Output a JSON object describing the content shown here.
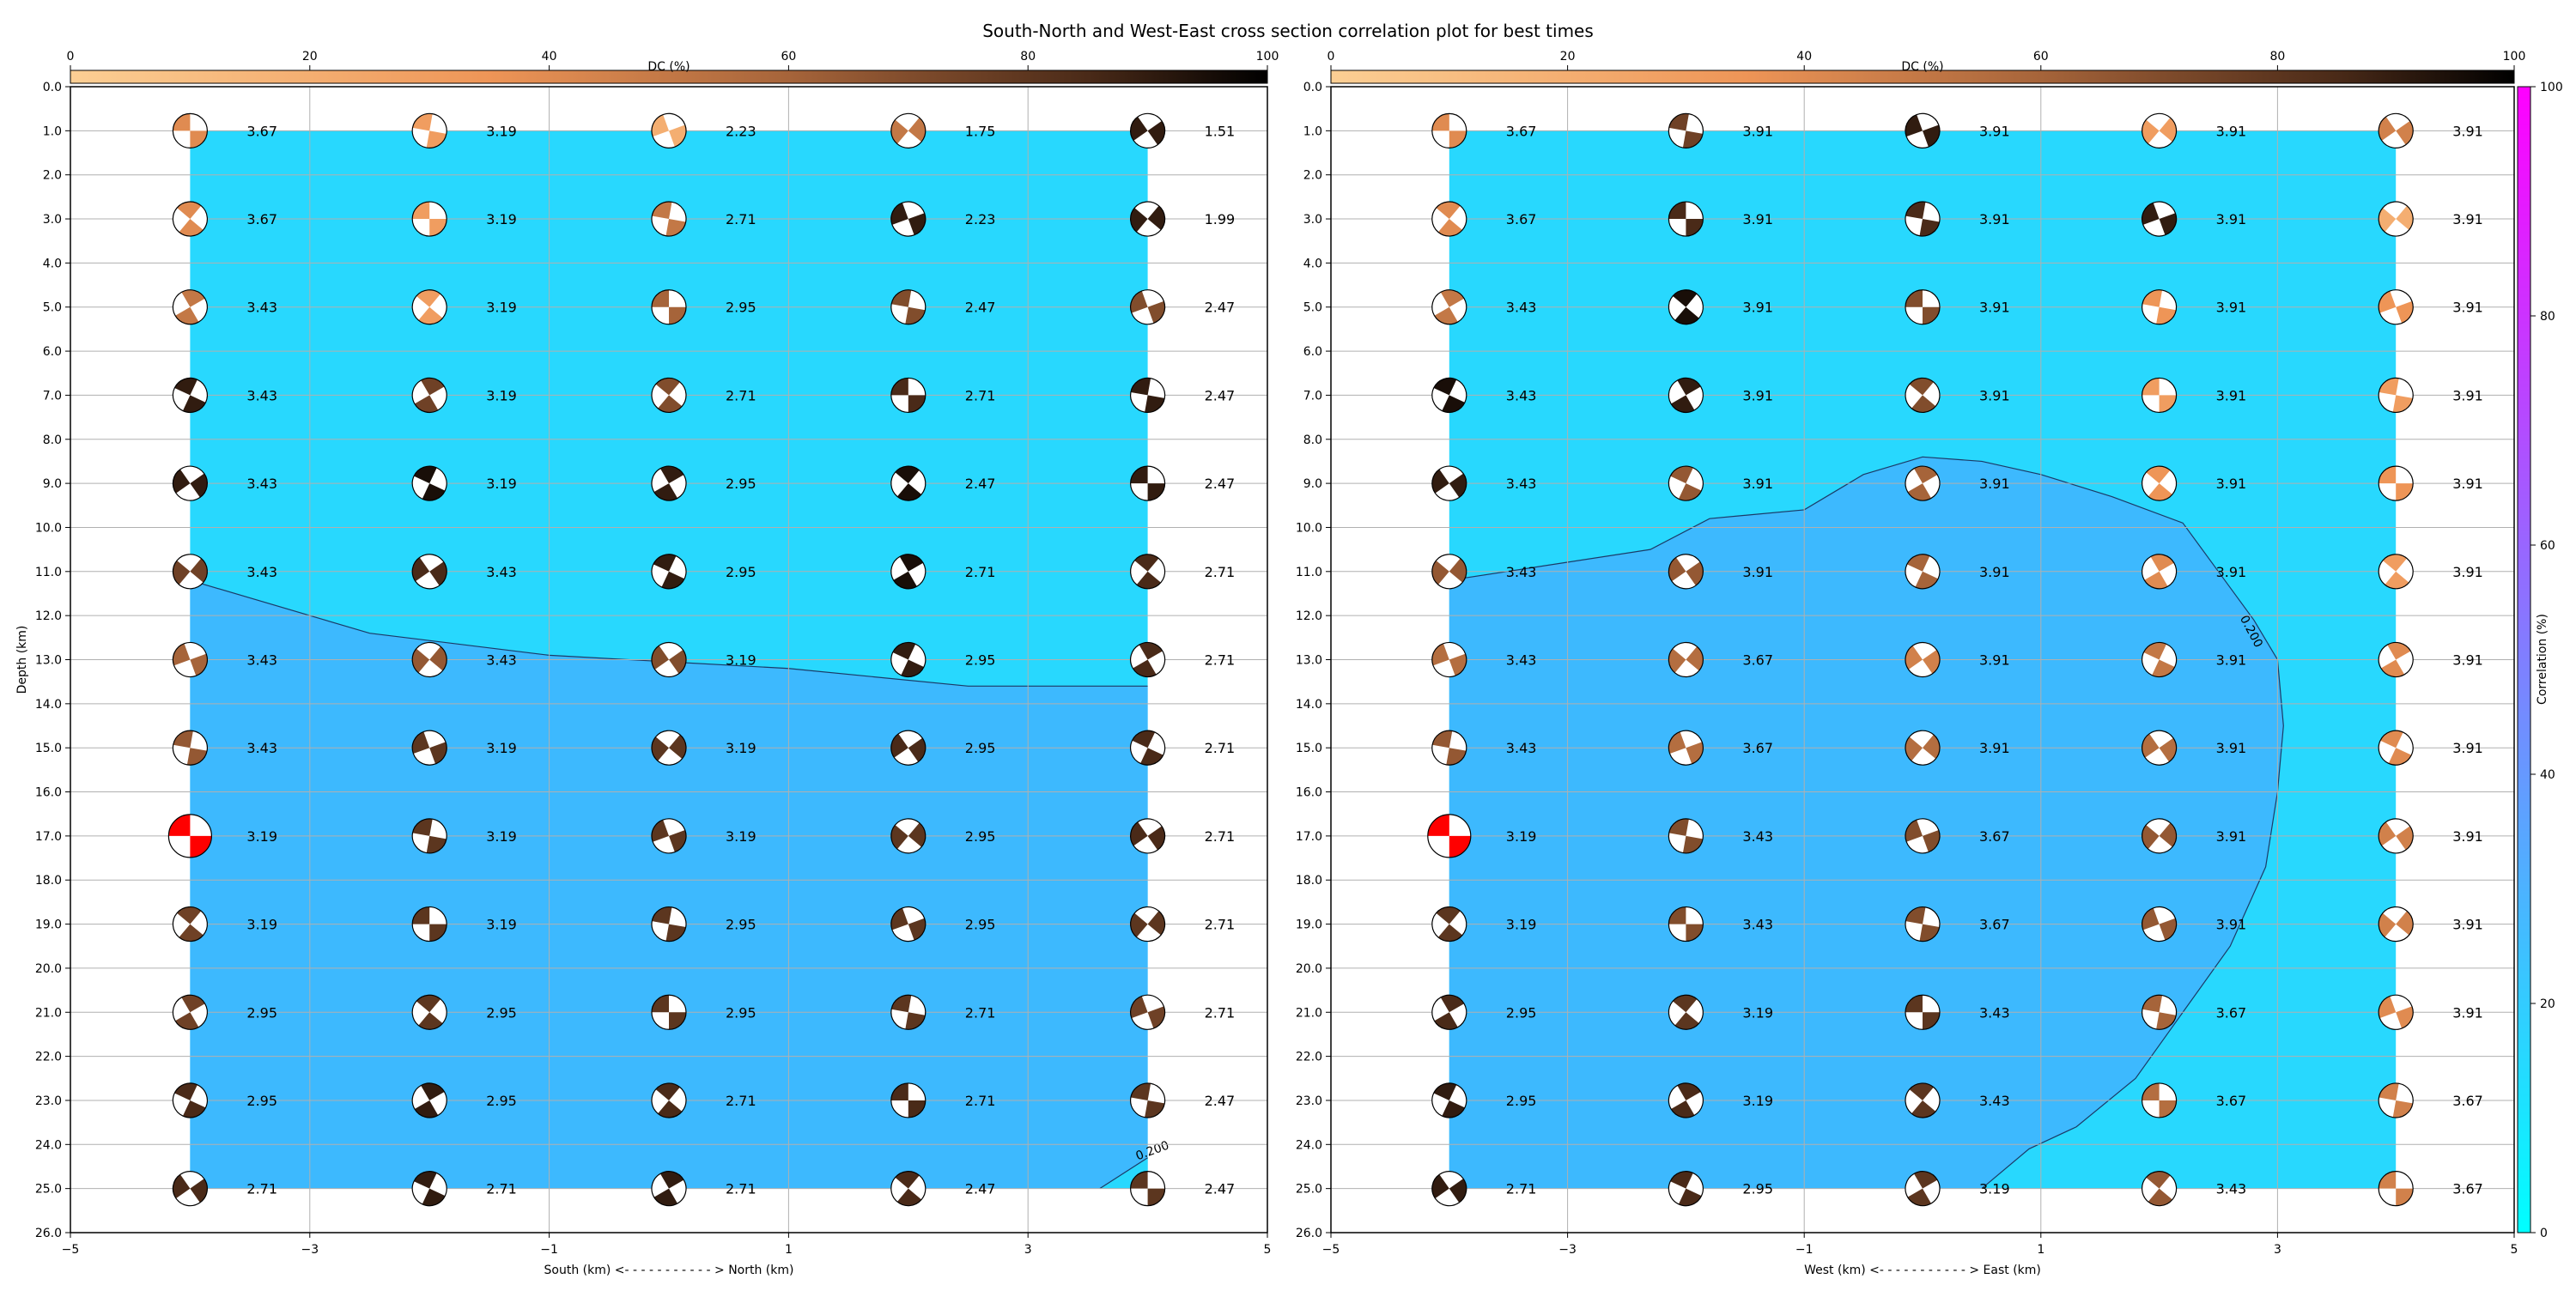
{
  "figure": {
    "title": "South-North and West-East cross section correlation plot for best times",
    "dc_colorbar": {
      "label": "DC (%)",
      "ticks": [
        0,
        20,
        40,
        60,
        80,
        100
      ]
    },
    "corr_colorbar": {
      "label": "Correlation (%)",
      "ticks": [
        0,
        20,
        40,
        60,
        80,
        100
      ]
    },
    "colors": {
      "high_corr_fill": "#28d8fe",
      "low_corr_fill": "#3db9fe",
      "best_solution": "#ff0000",
      "grid": "#b0b0b0"
    }
  },
  "chart_data": [
    {
      "type": "heatmap",
      "xlabel": "South (km) <- - - - - - - - - - - > North (km)",
      "ylabel": "Depth (km)",
      "xlim": [
        -5,
        5
      ],
      "ylim": [
        26,
        0
      ],
      "xticks": [
        "−5",
        "−3",
        "−1",
        "1",
        "3",
        "5"
      ],
      "yticks": [
        "0.0",
        "1.0",
        "2.0",
        "3.0",
        "4.0",
        "5.0",
        "6.0",
        "7.0",
        "8.0",
        "9.0",
        "10.0",
        "11.0",
        "12.0",
        "13.0",
        "14.0",
        "15.0",
        "16.0",
        "17.0",
        "18.0",
        "19.0",
        "20.0",
        "21.0",
        "22.0",
        "23.0",
        "24.0",
        "25.0",
        "26.0"
      ],
      "grid": true,
      "x": [
        -4,
        -2,
        0,
        2,
        4
      ],
      "depths": [
        1,
        3,
        5,
        7,
        9,
        11,
        13,
        15,
        17,
        19,
        21,
        23,
        25
      ],
      "values": [
        [
          "3.67",
          "3.19",
          "2.23",
          "1.75",
          "1.51"
        ],
        [
          "3.67",
          "3.19",
          "2.71",
          "2.23",
          "1.99"
        ],
        [
          "3.43",
          "3.19",
          "2.95",
          "2.47",
          "2.47"
        ],
        [
          "3.43",
          "3.19",
          "2.71",
          "2.71",
          "2.47"
        ],
        [
          "3.43",
          "3.19",
          "2.95",
          "2.47",
          "2.47"
        ],
        [
          "3.43",
          "3.43",
          "2.95",
          "2.71",
          "2.71"
        ],
        [
          "3.43",
          "3.43",
          "3.19",
          "2.95",
          "2.71"
        ],
        [
          "3.43",
          "3.19",
          "3.19",
          "2.95",
          "2.71"
        ],
        [
          "3.19",
          "3.19",
          "3.19",
          "2.95",
          "2.71"
        ],
        [
          "3.19",
          "3.19",
          "2.95",
          "2.95",
          "2.71"
        ],
        [
          "2.95",
          "2.95",
          "2.95",
          "2.71",
          "2.71"
        ],
        [
          "2.95",
          "2.95",
          "2.71",
          "2.71",
          "2.47"
        ],
        [
          "2.71",
          "2.71",
          "2.71",
          "2.47",
          "2.47"
        ]
      ],
      "dc_percent": [
        [
          40,
          30,
          20,
          50,
          90
        ],
        [
          40,
          30,
          50,
          90,
          90
        ],
        [
          50,
          30,
          60,
          70,
          70
        ],
        [
          90,
          75,
          70,
          85,
          90
        ],
        [
          90,
          95,
          90,
          95,
          90
        ],
        [
          75,
          85,
          90,
          95,
          85
        ],
        [
          60,
          65,
          70,
          90,
          85
        ],
        [
          65,
          80,
          80,
          85,
          85
        ],
        [
          0,
          80,
          80,
          80,
          85
        ],
        [
          75,
          80,
          80,
          80,
          80
        ],
        [
          75,
          80,
          80,
          80,
          75
        ],
        [
          85,
          90,
          85,
          85,
          80
        ],
        [
          85,
          90,
          90,
          85,
          80
        ]
      ],
      "best_solution": {
        "x": -4,
        "depth": 17
      },
      "contour_label": "0.200",
      "contour": [
        [
          -4,
          11.2
        ],
        [
          -2.5,
          12.4
        ],
        [
          -1,
          12.9
        ],
        [
          1,
          13.2
        ],
        [
          2.5,
          13.6
        ],
        [
          4,
          13.6
        ]
      ],
      "contour_tail": [
        [
          3.6,
          25
        ]
      ]
    },
    {
      "type": "heatmap",
      "xlabel": "West (km) <- - - - - - - - - - - > East (km)",
      "ylabel": "",
      "xlim": [
        -5,
        5
      ],
      "ylim": [
        26,
        0
      ],
      "xticks": [
        "−5",
        "−3",
        "−1",
        "1",
        "3",
        "5"
      ],
      "yticks": [
        "0.0",
        "1.0",
        "2.0",
        "3.0",
        "4.0",
        "5.0",
        "6.0",
        "7.0",
        "8.0",
        "9.0",
        "10.0",
        "11.0",
        "12.0",
        "13.0",
        "14.0",
        "15.0",
        "16.0",
        "17.0",
        "18.0",
        "19.0",
        "20.0",
        "21.0",
        "22.0",
        "23.0",
        "24.0",
        "25.0",
        "26.0"
      ],
      "grid": true,
      "x": [
        -4,
        -2,
        0,
        2,
        4
      ],
      "depths": [
        1,
        3,
        5,
        7,
        9,
        11,
        13,
        15,
        17,
        19,
        21,
        23,
        25
      ],
      "values": [
        [
          "3.67",
          "3.91",
          "3.91",
          "3.91",
          "3.91"
        ],
        [
          "3.67",
          "3.91",
          "3.91",
          "3.91",
          "3.91"
        ],
        [
          "3.43",
          "3.91",
          "3.91",
          "3.91",
          "3.91"
        ],
        [
          "3.43",
          "3.91",
          "3.91",
          "3.91",
          "3.91"
        ],
        [
          "3.43",
          "3.91",
          "3.91",
          "3.91",
          "3.91"
        ],
        [
          "3.43",
          "3.91",
          "3.91",
          "3.91",
          "3.91"
        ],
        [
          "3.43",
          "3.67",
          "3.91",
          "3.91",
          "3.91"
        ],
        [
          "3.43",
          "3.67",
          "3.91",
          "3.91",
          "3.91"
        ],
        [
          "3.19",
          "3.43",
          "3.67",
          "3.91",
          "3.91"
        ],
        [
          "3.19",
          "3.43",
          "3.67",
          "3.91",
          "3.91"
        ],
        [
          "2.95",
          "3.19",
          "3.43",
          "3.67",
          "3.91"
        ],
        [
          "2.95",
          "3.19",
          "3.43",
          "3.67",
          "3.67"
        ],
        [
          "2.71",
          "2.95",
          "3.19",
          "3.43",
          "3.67"
        ]
      ],
      "dc_percent": [
        [
          40,
          75,
          90,
          30,
          45
        ],
        [
          40,
          85,
          85,
          90,
          20
        ],
        [
          50,
          95,
          70,
          35,
          35
        ],
        [
          95,
          90,
          70,
          30,
          30
        ],
        [
          90,
          65,
          60,
          35,
          35
        ],
        [
          65,
          65,
          60,
          40,
          30
        ],
        [
          55,
          55,
          45,
          50,
          40
        ],
        [
          65,
          55,
          55,
          55,
          40
        ],
        [
          0,
          70,
          70,
          65,
          45
        ],
        [
          80,
          70,
          70,
          65,
          45
        ],
        [
          85,
          80,
          80,
          60,
          40
        ],
        [
          90,
          85,
          80,
          55,
          45
        ],
        [
          90,
          85,
          80,
          65,
          45
        ]
      ],
      "best_solution": {
        "x": -4,
        "depth": 17
      },
      "contour_label": "0.200",
      "contour": [
        [
          -4,
          11.2
        ],
        [
          -2.3,
          10.5
        ],
        [
          -1.8,
          9.8
        ],
        [
          -1,
          9.6
        ],
        [
          -0.5,
          8.8
        ],
        [
          0,
          8.4
        ],
        [
          0.5,
          8.5
        ],
        [
          1,
          8.8
        ],
        [
          1.6,
          9.3
        ],
        [
          2.2,
          9.9
        ],
        [
          2.5,
          11
        ],
        [
          2.8,
          12.1
        ],
        [
          3,
          13
        ],
        [
          3.05,
          14.5
        ],
        [
          3,
          16
        ],
        [
          2.9,
          17.7
        ],
        [
          2.6,
          19.5
        ],
        [
          2.2,
          21
        ],
        [
          1.8,
          22.5
        ],
        [
          1.3,
          23.6
        ],
        [
          0.9,
          24.1
        ],
        [
          0.5,
          25
        ]
      ]
    }
  ]
}
